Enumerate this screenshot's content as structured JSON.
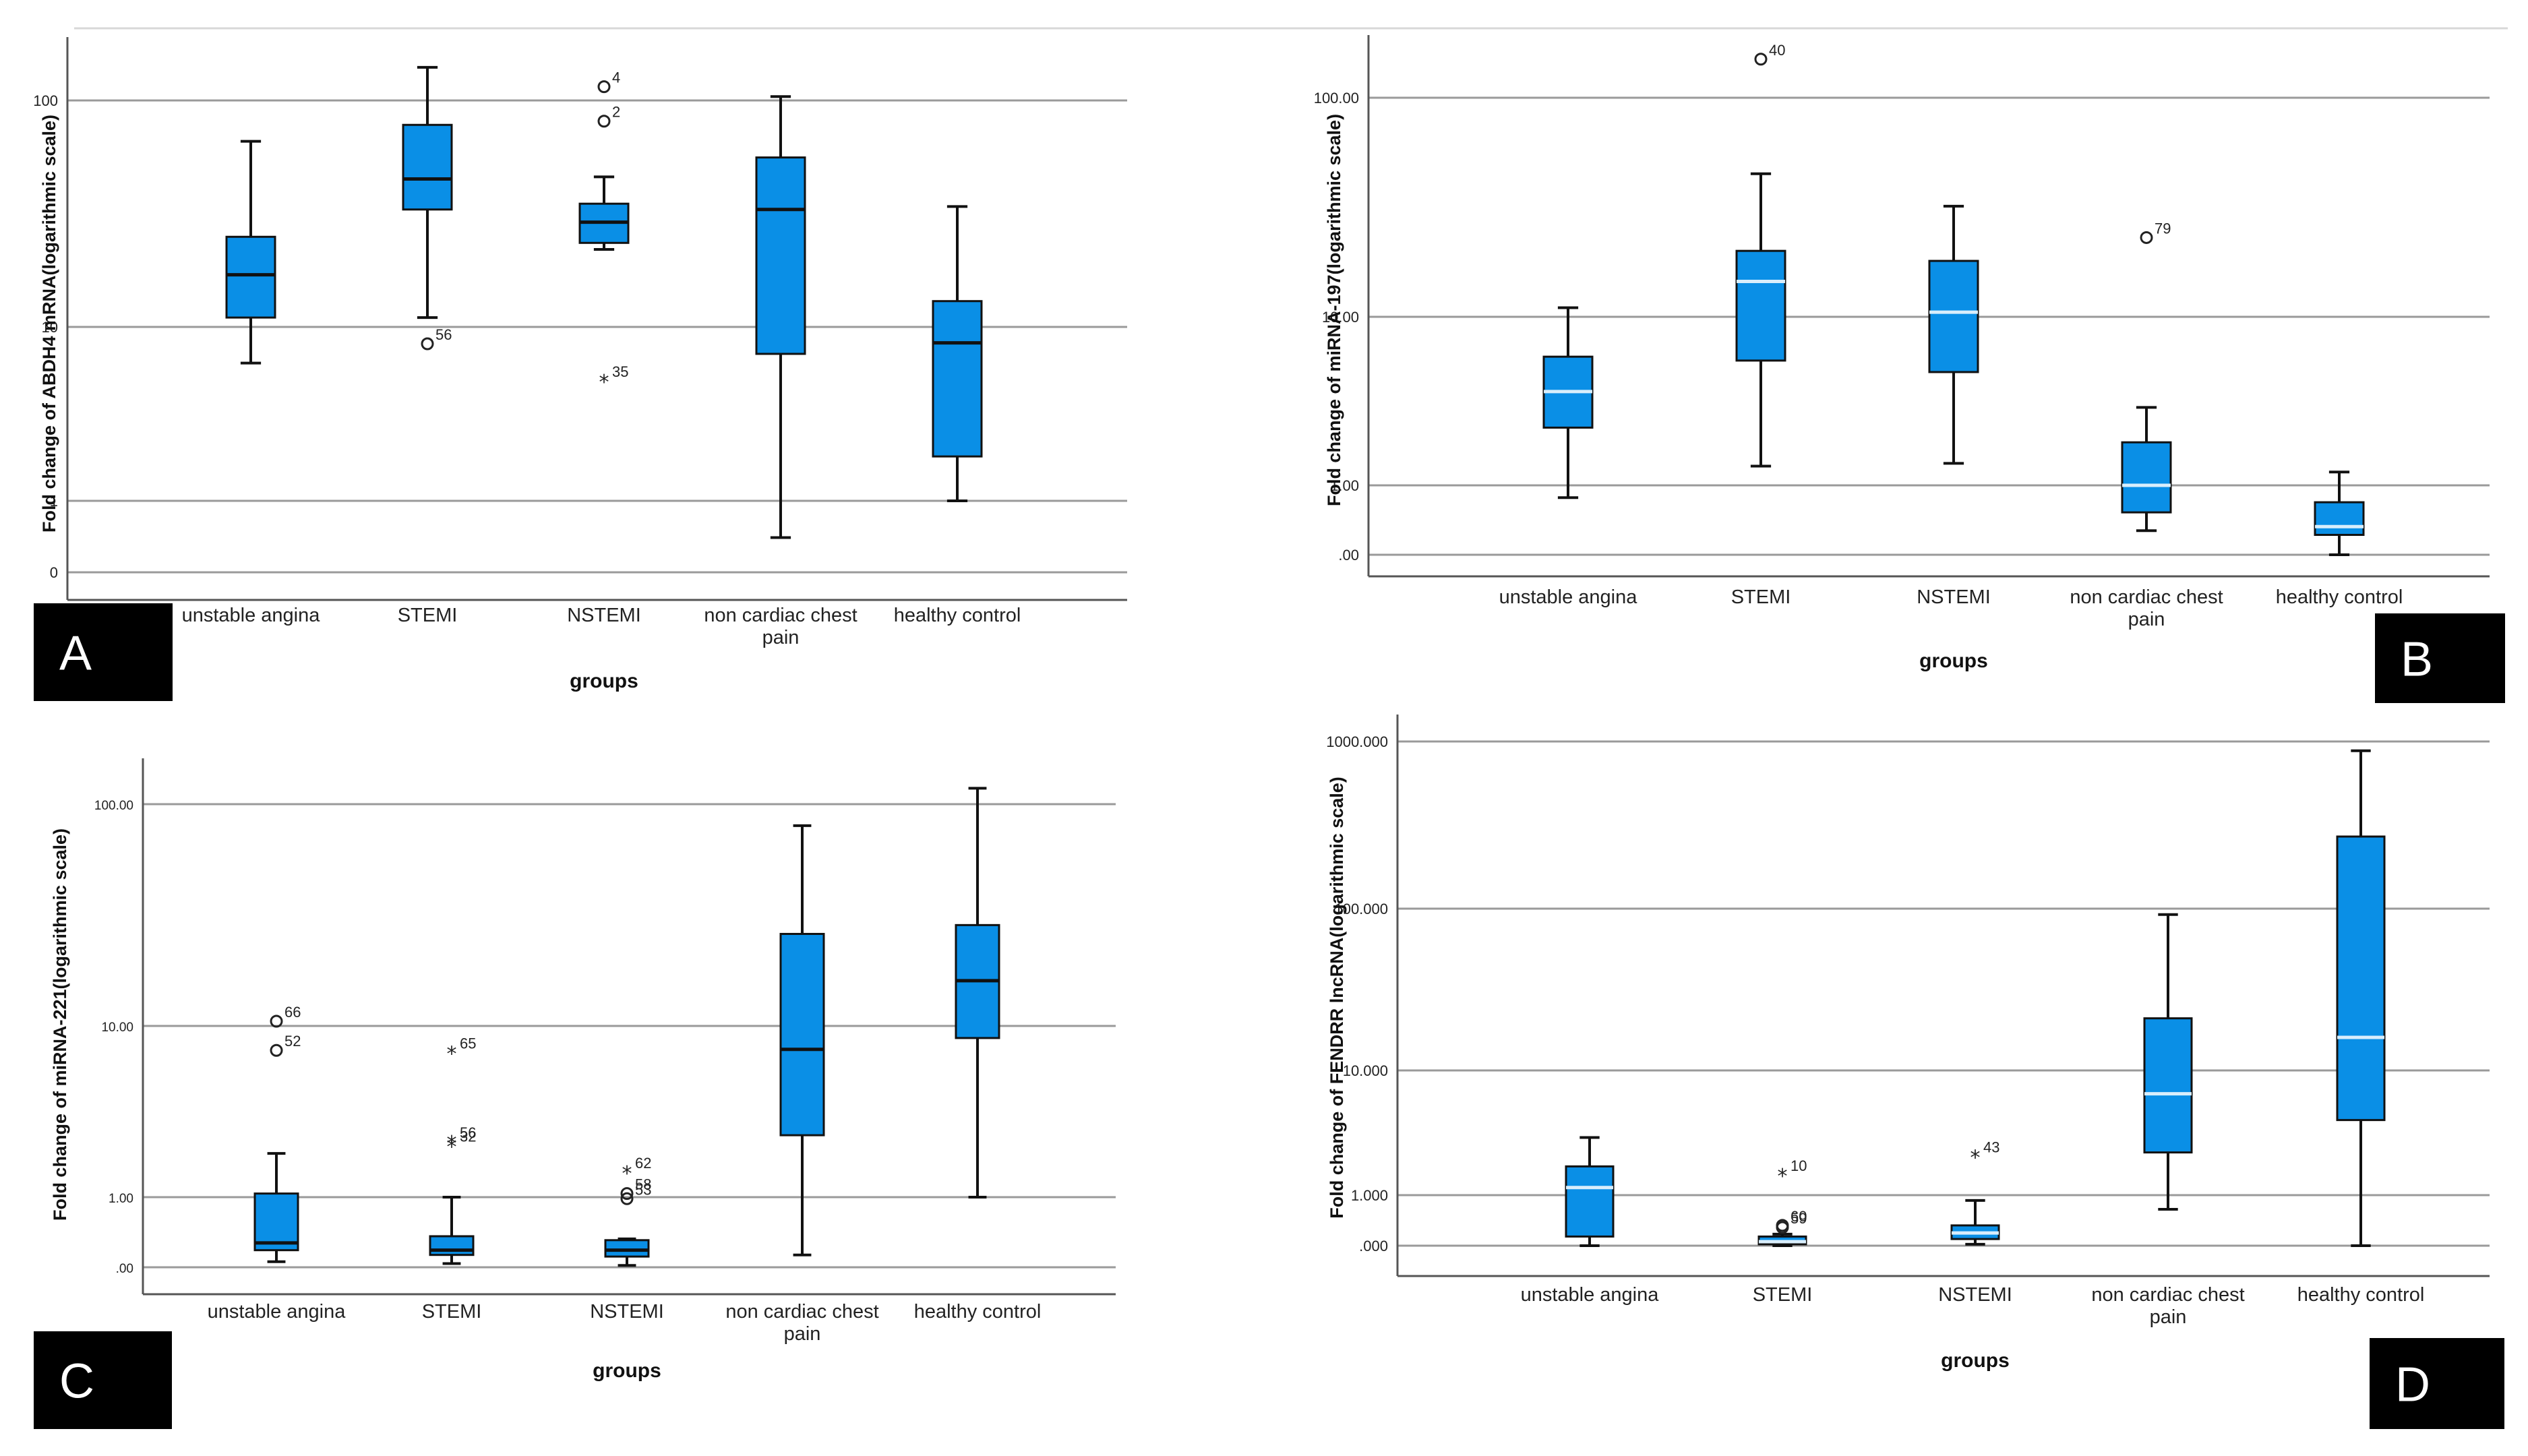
{
  "style": {
    "box_fill": "#0a8fe6",
    "grid_color": "#9a9a9a",
    "median_dark": "#111111",
    "median_light": "#d9eefc"
  },
  "chart_data": [
    {
      "type": "boxplot",
      "panel": "A",
      "scale": "log",
      "grid": true,
      "xlabel": "groups",
      "ylabel": "Fold change of ABDH4 mRNA(logarithmic scale)",
      "ytick_labels": [
        "0",
        "1",
        "10",
        "100"
      ],
      "categories": [
        "unstable angina",
        "STEMI",
        "NSTEMI",
        "non cardiac chest pain",
        "healthy control"
      ],
      "series": [
        {
          "min": 6.2,
          "q1": 11.0,
          "median": 17.0,
          "q3": 25.0,
          "max": 66.0
        },
        {
          "min": 11.0,
          "q1": 33.0,
          "median": 45.0,
          "q3": 78.0,
          "max": 140.0
        },
        {
          "min": 22.0,
          "q1": 23.5,
          "median": 29.0,
          "q3": 35.0,
          "max": 46.0
        },
        {
          "min": 0.7,
          "q1": 7.0,
          "median": 33.0,
          "q3": 56.0,
          "max": 104.0
        },
        {
          "min": 1.0,
          "q1": 1.8,
          "median": 8.1,
          "q3": 13.0,
          "max": 34.0
        }
      ],
      "outliers": [
        {
          "group": "STEMI",
          "value": 8.0,
          "label": "56",
          "symbol": "circle"
        },
        {
          "group": "NSTEMI",
          "value": 115.0,
          "label": "4",
          "symbol": "circle"
        },
        {
          "group": "NSTEMI",
          "value": 81.0,
          "label": "2",
          "symbol": "circle"
        },
        {
          "group": "NSTEMI",
          "value": 4.9,
          "label": "35",
          "symbol": "star"
        }
      ]
    },
    {
      "type": "boxplot",
      "panel": "B",
      "scale": "log",
      "grid": true,
      "xlabel": "groups",
      "ylabel": "Fold change of miRNA-197(logarithmic scale)",
      "ytick_labels": [
        ".00",
        "1.00",
        "10.00",
        "100.00"
      ],
      "categories": [
        "unstable angina",
        "STEMI",
        "NSTEMI",
        "non cardiac chest pain",
        "healthy control"
      ],
      "series": [
        {
          "min": 0.85,
          "q1": 2.2,
          "median": 3.6,
          "q3": 5.8,
          "max": 11.0
        },
        {
          "min": 1.3,
          "q1": 5.5,
          "median": 14.5,
          "q3": 20.0,
          "max": 45.0
        },
        {
          "min": 1.35,
          "q1": 4.7,
          "median": 10.5,
          "q3": 18.0,
          "max": 32.0
        },
        {
          "min": 0.55,
          "q1": 0.7,
          "median": 1.0,
          "q3": 1.8,
          "max": 2.9
        },
        {
          "min": 0.4,
          "q1": 0.52,
          "median": 0.58,
          "q3": 0.8,
          "max": 1.2
        }
      ],
      "outliers": [
        {
          "group": "STEMI",
          "value": 150.0,
          "label": "40",
          "symbol": "circle"
        },
        {
          "group": "non cardiac chest pain",
          "value": 23.0,
          "label": "79",
          "symbol": "circle"
        }
      ]
    },
    {
      "type": "boxplot",
      "panel": "C",
      "scale": "log",
      "grid": true,
      "xlabel": "groups",
      "ylabel": "Fold change of miRNA-221(logarithmic scale)",
      "ytick_labels": [
        ".00",
        "1.00",
        "10.00",
        "100.00"
      ],
      "categories": [
        "unstable angina",
        "STEMI",
        "NSTEMI",
        "non cardiac chest pain",
        "healthy control"
      ],
      "series": [
        {
          "min": 0.43,
          "q1": 0.5,
          "median": 0.55,
          "q3": 1.05,
          "max": 1.8
        },
        {
          "min": 0.42,
          "q1": 0.47,
          "median": 0.5,
          "q3": 0.6,
          "max": 1.0
        },
        {
          "min": 0.41,
          "q1": 0.46,
          "median": 0.5,
          "q3": 0.57,
          "max": 0.58
        },
        {
          "min": 0.47,
          "q1": 2.3,
          "median": 7.3,
          "q3": 26.0,
          "max": 80.0
        },
        {
          "min": 1.0,
          "q1": 8.5,
          "median": 16.0,
          "q3": 28.5,
          "max": 118.0
        }
      ],
      "outliers": [
        {
          "group": "unstable angina",
          "value": 10.5,
          "label": "66",
          "symbol": "circle"
        },
        {
          "group": "unstable angina",
          "value": 7.2,
          "label": "52",
          "symbol": "circle"
        },
        {
          "group": "STEMI",
          "value": 7.0,
          "label": "65",
          "symbol": "star"
        },
        {
          "group": "STEMI",
          "value": 2.1,
          "label": "56",
          "symbol": "star"
        },
        {
          "group": "STEMI",
          "value": 2.0,
          "label": "32",
          "symbol": "star"
        },
        {
          "group": "NSTEMI",
          "value": 1.4,
          "label": "62",
          "symbol": "star"
        },
        {
          "group": "NSTEMI",
          "value": 1.05,
          "label": "58",
          "symbol": "circle"
        },
        {
          "group": "NSTEMI",
          "value": 0.98,
          "label": "53",
          "symbol": "circle"
        }
      ]
    },
    {
      "type": "boxplot",
      "panel": "D",
      "scale": "log",
      "grid": true,
      "xlabel": "groups",
      "ylabel": "Fold change of FENDRR lncRNA(logarithmic scale)",
      "ytick_labels": [
        ".000",
        "1.000",
        "10.000",
        "100.000",
        "1000.000"
      ],
      "categories": [
        "unstable angina",
        "STEMI",
        "NSTEMI",
        "non cardiac chest pain",
        "healthy control"
      ],
      "series": [
        {
          "min": 0.45,
          "q1": 0.52,
          "median": 1.15,
          "q3": 1.7,
          "max": 2.9
        },
        {
          "min": 0.45,
          "q1": 0.46,
          "median": 0.48,
          "q3": 0.52,
          "max": 0.54
        },
        {
          "min": 0.46,
          "q1": 0.5,
          "median": 0.55,
          "q3": 0.62,
          "max": 0.92
        },
        {
          "min": 0.8,
          "q1": 2.2,
          "median": 6.5,
          "q3": 21.0,
          "max": 92.0
        },
        {
          "min": 0.45,
          "q1": 4.0,
          "median": 16.0,
          "q3": 270.0,
          "max": 880.0
        }
      ],
      "outliers": [
        {
          "group": "STEMI",
          "value": 1.45,
          "label": "10",
          "symbol": "star"
        },
        {
          "group": "STEMI",
          "value": 0.62,
          "label": "60",
          "symbol": "circle"
        },
        {
          "group": "STEMI",
          "value": 0.6,
          "label": "59",
          "symbol": "circle"
        },
        {
          "group": "NSTEMI",
          "value": 2.05,
          "label": "43",
          "symbol": "star"
        }
      ]
    }
  ]
}
